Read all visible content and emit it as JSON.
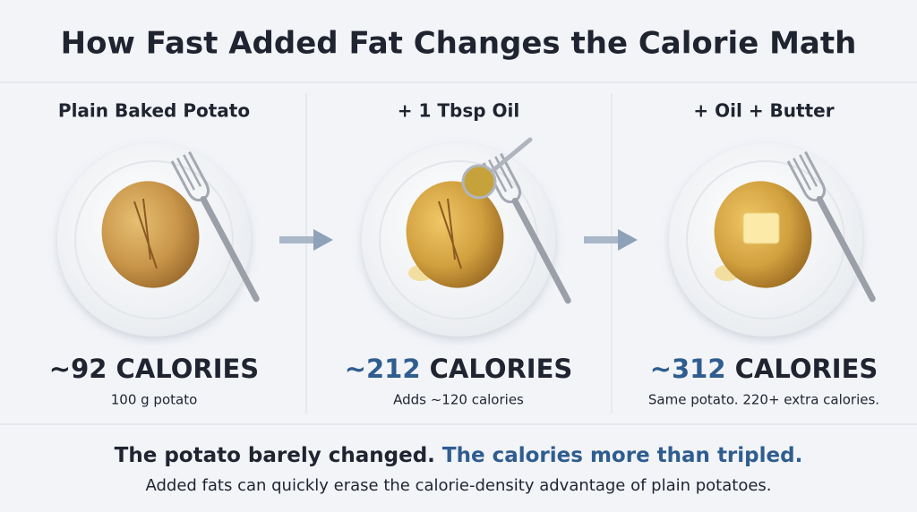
{
  "title": "How Fast Added Fat Changes the Calorie Math",
  "panels": [
    {
      "heading": "Plain Baked Potato",
      "calories_value": "~92",
      "calories_unit": "CALORIES",
      "note": "100 g potato"
    },
    {
      "heading": "+ 1 Tbsp Oil",
      "calories_value": "~212",
      "calories_unit": "CALORIES",
      "note": "Adds ~120 calories"
    },
    {
      "heading": "+ Oil + Butter",
      "calories_value": "~312",
      "calories_unit": "CALORIES",
      "note": "Same potato. 220+ extra calories."
    }
  ],
  "footer": {
    "lead": "The potato barely changed.",
    "highlight": "The calories more than tripled.",
    "note": "Added fats can quickly erase the calorie-density advantage of plain potatoes."
  }
}
